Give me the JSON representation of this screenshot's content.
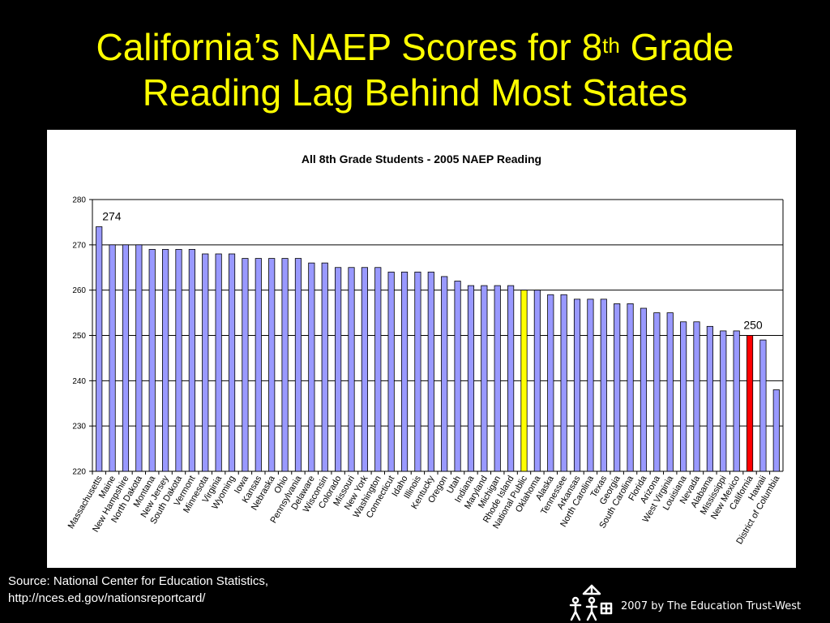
{
  "slide": {
    "title_line1_pre": "California’s NAEP Scores for 8",
    "title_sup": "th",
    "title_line1_post": " Grade",
    "title_line2": "Reading Lag Behind Most States",
    "source_line1": "Source: National Center for Education Statistics,",
    "source_line2": "http://nces.ed.gov/nationsreportcard/",
    "copyright": "2007 by The Education Trust-West"
  },
  "chart_data": {
    "type": "bar",
    "title": "All 8th Grade Students - 2005 NAEP Reading",
    "ylim": [
      220,
      280
    ],
    "yticks": [
      220,
      230,
      240,
      250,
      260,
      270,
      280
    ],
    "grid": true,
    "legend": "none",
    "colors": {
      "default": "#9999ff",
      "highlight_national": "#ffff00",
      "highlight_california": "#ff0000",
      "edge": "#000000"
    },
    "categories": [
      "Massachusetts",
      "Maine",
      "New Hampshire",
      "North Dakota",
      "Montana",
      "New Jersey",
      "South Dakota",
      "Vermont",
      "Minnesota",
      "Virginia",
      "Wyoming",
      "Iowa",
      "Kansas",
      "Nebraska",
      "Ohio",
      "Pennsylvania",
      "Delaware",
      "Wisconsin",
      "Colorado",
      "Missouri",
      "New York",
      "Washington",
      "Connecticut",
      "Idaho",
      "Illinois",
      "Kentucky",
      "Oregon",
      "Utah",
      "Indiana",
      "Maryland",
      "Michigan",
      "Rhode Island",
      "National Public",
      "Oklahoma",
      "Alaska",
      "Tennessee",
      "Arkansas",
      "North Carolina",
      "Texas",
      "Georgia",
      "South Carolina",
      "Florida",
      "Arizona",
      "West Virginia",
      "Louisiana",
      "Nevada",
      "Alabama",
      "Mississippi",
      "New Mexico",
      "California",
      "Hawaii",
      "District of Columbia"
    ],
    "values": [
      274,
      270,
      270,
      270,
      269,
      269,
      269,
      269,
      268,
      268,
      268,
      267,
      267,
      267,
      267,
      267,
      266,
      266,
      265,
      265,
      265,
      265,
      264,
      264,
      264,
      264,
      263,
      262,
      261,
      261,
      261,
      261,
      260,
      260,
      259,
      259,
      258,
      258,
      258,
      257,
      257,
      256,
      255,
      255,
      253,
      253,
      252,
      251,
      251,
      250,
      249,
      238
    ],
    "highlight": {
      "National Public": "highlight_national",
      "California": "highlight_california"
    },
    "annotations": [
      {
        "category": "Massachusetts",
        "text": "274"
      },
      {
        "category": "California",
        "text": "250"
      }
    ]
  }
}
